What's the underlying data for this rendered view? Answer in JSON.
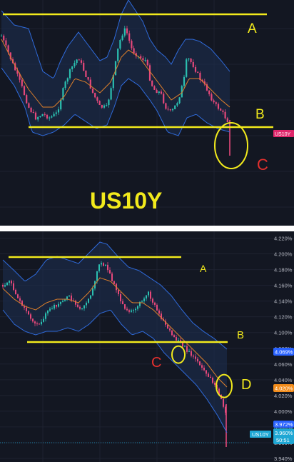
{
  "colors": {
    "background": "#131722",
    "grid": "#1e2230",
    "bollinger_band": "#2f6bdc",
    "band_fill": "#1d2f52",
    "moving_average": "#e0802a",
    "candle_up": "#2bbfb0",
    "candle_down": "#e5487a",
    "marker_yellow": "#f2ea1c",
    "marker_red": "#e5302e",
    "price_tag_pink": "#e0266b",
    "price_tag_blue": "#2962ff",
    "price_tag_orange": "#f28c1b",
    "price_tag_cyan": "#1fa7d4"
  },
  "top_chart": {
    "watermark": "US10Y",
    "price_tag": "US10Y",
    "annotations": {
      "a": "A",
      "b": "B",
      "c": "C"
    }
  },
  "bottom_chart": {
    "annotations": {
      "a": "A",
      "b": "B",
      "c": "C",
      "d": "D"
    },
    "axis_ticks": [
      "4.220%",
      "4.200%",
      "4.180%",
      "4.160%",
      "4.140%",
      "4.120%",
      "4.100%",
      "4.080%",
      "4.060%",
      "4.040%",
      "4.020%",
      "4.000%",
      "3.980%",
      "3.960%",
      "3.940%"
    ],
    "price_tags": {
      "upper_band": "4.069%",
      "moving_average": "4.020%",
      "lower_band": "3.972%",
      "symbol": "US10Y",
      "last": "3.960%",
      "countdown": "50:51"
    }
  },
  "chart_data": [
    {
      "type": "candlestick",
      "title": "",
      "symbol": "US10Y",
      "overlays": [
        "Bollinger Bands",
        "Moving Average"
      ],
      "horizontal_levels": [
        {
          "name": "A",
          "position": "top resistance"
        },
        {
          "name": "B",
          "position": "support"
        }
      ],
      "highlighted_region": {
        "name": "C",
        "description": "wick breaking below support B"
      },
      "y_axis_visible": false,
      "grid": true
    },
    {
      "type": "candlestick",
      "title": "",
      "symbol": "US10Y",
      "overlays": [
        "Bollinger Bands",
        "Moving Average"
      ],
      "ylim": [
        3.94,
        4.225
      ],
      "y_ticks": [
        4.22,
        4.2,
        4.18,
        4.16,
        4.14,
        4.12,
        4.1,
        4.08,
        4.06,
        4.04,
        4.02,
        4.0,
        3.98,
        3.96,
        3.94
      ],
      "horizontal_levels": [
        {
          "name": "A",
          "value": 4.196
        },
        {
          "name": "B",
          "value": 4.088
        }
      ],
      "marked_points": [
        {
          "name": "C",
          "value": 4.072
        },
        {
          "name": "D",
          "value": 4.032
        }
      ],
      "last_value": 3.96,
      "upper_band_value": 4.069,
      "moving_average_value": 4.02,
      "lower_band_value": 3.972,
      "grid": true
    }
  ]
}
